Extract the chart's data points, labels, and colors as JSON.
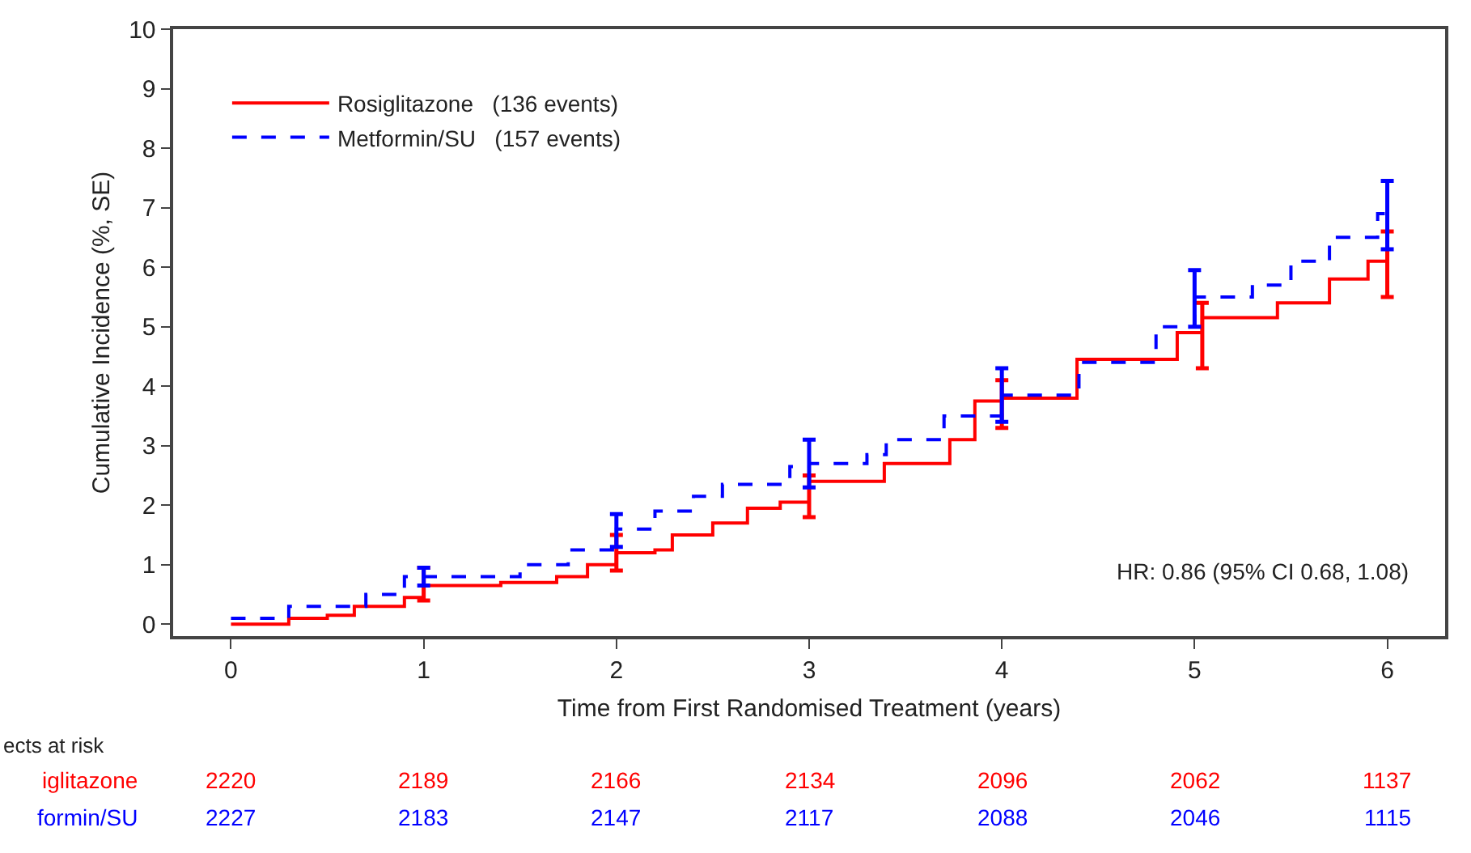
{
  "chart_data": {
    "type": "step",
    "xlabel": "Time from First Randomised Treatment (years)",
    "ylabel": "Cumulative Incidence (%, SE)",
    "xlim": [
      -0.3,
      6.3
    ],
    "xticks": [
      0,
      1,
      2,
      3,
      4,
      5,
      6
    ],
    "ylim": [
      -0.2,
      10
    ],
    "yticks": [
      0,
      1,
      2,
      3,
      4,
      5,
      6,
      7,
      8,
      9,
      10
    ],
    "legend": "top left",
    "marker": "none",
    "series": [
      {
        "name": "Rosiglitazone   (136 events)",
        "color": "#ff0000",
        "line_style": "solid",
        "x": [
          0,
          0.3,
          0.5,
          0.64,
          0.9,
          1,
          1.4,
          1.69,
          1.85,
          2,
          2.2,
          2.29,
          2.5,
          2.68,
          2.85,
          3,
          3.39,
          3.73,
          3.86,
          4,
          4.39,
          4.91,
          5.04,
          5.43,
          5.7,
          5.9,
          6
        ],
        "values": [
          0,
          0.1,
          0.15,
          0.3,
          0.45,
          0.65,
          0.7,
          0.8,
          1.0,
          1.2,
          1.25,
          1.5,
          1.7,
          1.95,
          2.05,
          2.4,
          2.7,
          3.1,
          3.75,
          3.8,
          4.45,
          4.9,
          5.15,
          5.4,
          5.8,
          6.1,
          6.1
        ],
        "errors": [
          null,
          null,
          null,
          null,
          null,
          [
            0.4,
            0.95
          ],
          null,
          null,
          null,
          [
            0.9,
            1.5
          ],
          null,
          null,
          null,
          null,
          null,
          [
            1.8,
            2.5
          ],
          null,
          null,
          null,
          [
            3.3,
            4.1
          ],
          null,
          null,
          [
            4.3,
            5.4
          ],
          null,
          null,
          null,
          [
            5.5,
            6.6
          ]
        ]
      },
      {
        "name": "Metformin/SU   (157 events)",
        "color": "#0000ff",
        "line_style": "dashed",
        "x": [
          0,
          0.3,
          0.7,
          0.85,
          0.9,
          1,
          1.5,
          1.75,
          2,
          2.2,
          2.4,
          2.55,
          2.75,
          2.9,
          3,
          3.3,
          3.4,
          3.7,
          4,
          4.4,
          4.8,
          5,
          5.3,
          5.5,
          5.7,
          5.95,
          6
        ],
        "values": [
          0.1,
          0.3,
          0.5,
          0.6,
          0.8,
          0.8,
          1.0,
          1.25,
          1.6,
          1.9,
          2.15,
          2.35,
          2.35,
          2.65,
          2.7,
          2.85,
          3.1,
          3.5,
          3.85,
          4.4,
          5.0,
          5.5,
          5.7,
          6.1,
          6.5,
          6.9,
          6.9
        ],
        "errors": [
          null,
          null,
          null,
          null,
          null,
          [
            0.65,
            0.95
          ],
          null,
          null,
          [
            1.3,
            1.85
          ],
          null,
          null,
          null,
          null,
          null,
          [
            2.3,
            3.1
          ],
          null,
          null,
          null,
          [
            3.4,
            4.3
          ],
          null,
          null,
          [
            5.0,
            5.95
          ],
          null,
          null,
          null,
          null,
          [
            6.3,
            7.45
          ]
        ]
      }
    ],
    "annotations": [
      "HR: 0.86 (95% CI 0.68, 1.08)",
      "ects at risk",
      "iglitazone",
      "2220",
      "2189",
      "2166",
      "2134",
      "2096",
      "2062",
      "1137",
      "formin/SU",
      "2227",
      "2183",
      "2147",
      "2117",
      "2088",
      "2046",
      "1115"
    ]
  }
}
